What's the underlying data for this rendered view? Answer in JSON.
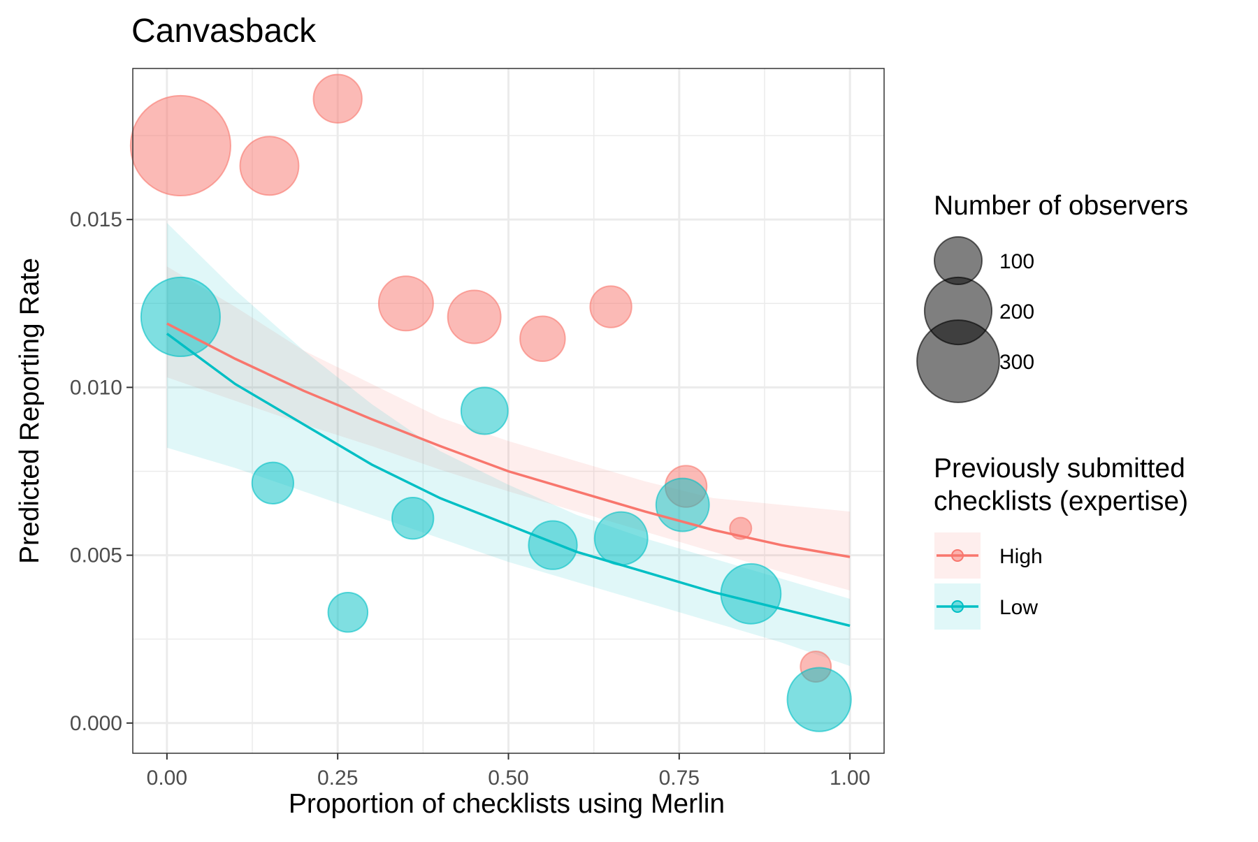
{
  "chart_data": {
    "type": "scatter",
    "title": "Canvasback",
    "xlabel": "Proportion of checklists using Merlin",
    "ylabel": "Predicted Reporting Rate",
    "xlim": [
      -0.05,
      1.05
    ],
    "ylim": [
      -0.0009,
      0.0195
    ],
    "x_ticks": [
      0,
      0.25,
      0.5,
      0.75,
      1
    ],
    "x_tick_labels": [
      "0.00",
      "0.25",
      "0.50",
      "0.75",
      "1.00"
    ],
    "y_ticks": [
      0,
      0.005,
      0.01,
      0.015
    ],
    "y_tick_labels": [
      "0.000",
      "0.005",
      "0.010",
      "0.015"
    ],
    "grid": true,
    "legend_position": "right",
    "size_legend": {
      "title": "Number of observers",
      "entries": [
        {
          "label": "100",
          "value": 100
        },
        {
          "label": "200",
          "value": 200
        },
        {
          "label": "300",
          "value": 300
        }
      ]
    },
    "color_legend": {
      "title_lines": [
        "Previously submitted",
        "checklists (expertise)"
      ],
      "entries": [
        {
          "label": "High",
          "color": "#F8766D"
        },
        {
          "label": "Low",
          "color": "#00BFC4"
        }
      ]
    },
    "series": [
      {
        "name": "High",
        "color": "#F8766D",
        "points": [
          {
            "x": 0.02,
            "y": 0.0172,
            "n": 320
          },
          {
            "x": 0.15,
            "y": 0.0166,
            "n": 110
          },
          {
            "x": 0.25,
            "y": 0.0186,
            "n": 75
          },
          {
            "x": 0.35,
            "y": 0.0125,
            "n": 95
          },
          {
            "x": 0.45,
            "y": 0.0121,
            "n": 90
          },
          {
            "x": 0.55,
            "y": 0.01145,
            "n": 65
          },
          {
            "x": 0.65,
            "y": 0.0124,
            "n": 55
          },
          {
            "x": 0.76,
            "y": 0.00705,
            "n": 55
          },
          {
            "x": 0.84,
            "y": 0.0058,
            "n": 15
          },
          {
            "x": 0.95,
            "y": 0.00168,
            "n": 30
          }
        ],
        "fit": {
          "x": [
            0,
            0.1,
            0.2,
            0.3,
            0.4,
            0.5,
            0.6,
            0.7,
            0.8,
            0.9,
            1.0
          ],
          "y": [
            0.0119,
            0.01085,
            0.0099,
            0.00905,
            0.00825,
            0.0075,
            0.0069,
            0.0063,
            0.00575,
            0.0053,
            0.00495
          ],
          "lower": [
            0.0103,
            0.0096,
            0.0089,
            0.00825,
            0.00755,
            0.0069,
            0.0063,
            0.0057,
            0.0051,
            0.0045,
            0.00395
          ],
          "upper": [
            0.0136,
            0.0124,
            0.0111,
            0.0101,
            0.0091,
            0.0084,
            0.0078,
            0.0072,
            0.0067,
            0.0065,
            0.0063
          ]
        }
      },
      {
        "name": "Low",
        "color": "#00BFC4",
        "points": [
          {
            "x": 0.02,
            "y": 0.0121,
            "n": 200
          },
          {
            "x": 0.155,
            "y": 0.00715,
            "n": 55
          },
          {
            "x": 0.265,
            "y": 0.0033,
            "n": 50
          },
          {
            "x": 0.36,
            "y": 0.0061,
            "n": 55
          },
          {
            "x": 0.465,
            "y": 0.0093,
            "n": 70
          },
          {
            "x": 0.565,
            "y": 0.0053,
            "n": 75
          },
          {
            "x": 0.665,
            "y": 0.0055,
            "n": 90
          },
          {
            "x": 0.755,
            "y": 0.0065,
            "n": 90
          },
          {
            "x": 0.855,
            "y": 0.00385,
            "n": 115
          },
          {
            "x": 0.955,
            "y": 0.0007,
            "n": 130
          }
        ],
        "fit": {
          "x": [
            0,
            0.1,
            0.2,
            0.3,
            0.4,
            0.5,
            0.6,
            0.7,
            0.8,
            0.9,
            1.0
          ],
          "y": [
            0.0116,
            0.0101,
            0.0089,
            0.0077,
            0.0067,
            0.0059,
            0.0051,
            0.0045,
            0.0039,
            0.0034,
            0.0029
          ],
          "lower": [
            0.0082,
            0.0076,
            0.0069,
            0.0062,
            0.0055,
            0.0048,
            0.0042,
            0.0036,
            0.003,
            0.0024,
            0.0017
          ],
          "upper": [
            0.0149,
            0.0129,
            0.0111,
            0.0095,
            0.0081,
            0.0071,
            0.0062,
            0.0055,
            0.0049,
            0.0043,
            0.0037
          ]
        }
      }
    ]
  }
}
